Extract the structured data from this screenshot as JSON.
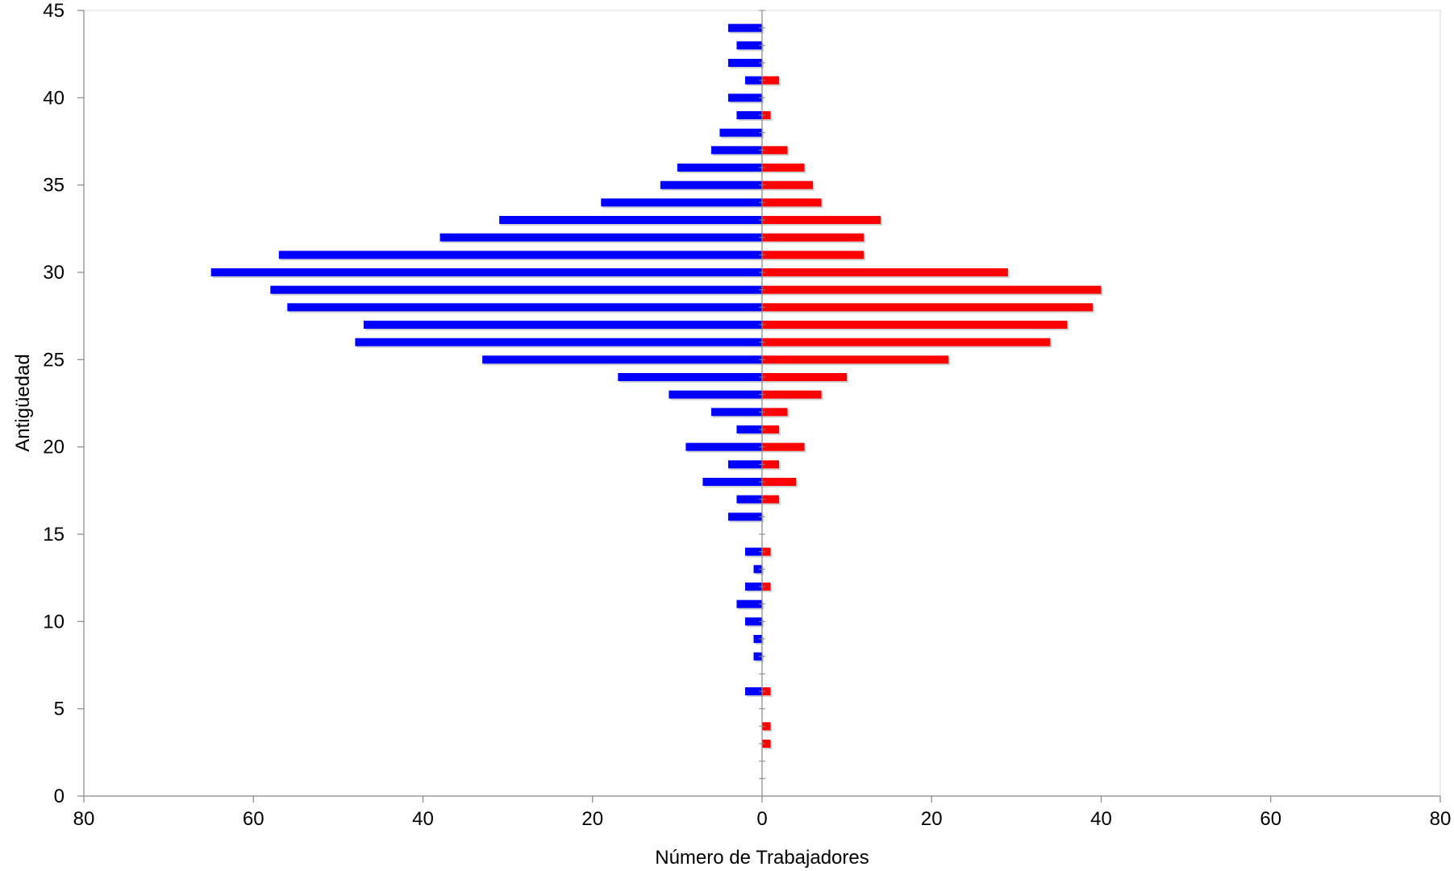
{
  "chart_data": {
    "type": "bar",
    "orientation": "horizontal",
    "layout": "population-pyramid",
    "title": "",
    "xlabel": "Número de Trabajadores",
    "ylabel": "Antigüedad",
    "xlim": [
      -80,
      80
    ],
    "ylim": [
      0,
      45
    ],
    "x_tick_values": [
      -80,
      -60,
      -40,
      -20,
      0,
      20,
      40,
      60,
      80
    ],
    "x_tick_labels": [
      "80",
      "60",
      "40",
      "20",
      "0",
      "20",
      "40",
      "60",
      "80"
    ],
    "y_tick_values": [
      0,
      5,
      10,
      15,
      20,
      25,
      30,
      35,
      40,
      45
    ],
    "y_tick_labels": [
      "0",
      "5",
      "10",
      "15",
      "20",
      "25",
      "30",
      "35",
      "40",
      "45"
    ],
    "grid": false,
    "legend": "none",
    "categories": [
      3,
      4,
      5,
      6,
      7,
      8,
      9,
      10,
      11,
      12,
      13,
      14,
      15,
      16,
      17,
      18,
      19,
      20,
      21,
      22,
      23,
      24,
      25,
      26,
      27,
      28,
      29,
      30,
      31,
      32,
      33,
      34,
      35,
      36,
      37,
      38,
      39,
      40,
      41,
      42,
      43,
      44
    ],
    "series": [
      {
        "side": "left",
        "color": "#0000ff",
        "values": [
          0,
          0,
          0,
          2,
          0,
          1,
          1,
          2,
          3,
          2,
          1,
          2,
          0,
          4,
          3,
          7,
          4,
          9,
          3,
          6,
          11,
          17,
          33,
          48,
          47,
          56,
          58,
          65,
          57,
          38,
          31,
          19,
          12,
          10,
          6,
          5,
          3,
          4,
          2,
          4,
          3,
          4
        ]
      },
      {
        "side": "right",
        "color": "#ff0000",
        "values": [
          1,
          1,
          0,
          1,
          0,
          0,
          0,
          0,
          0,
          1,
          0,
          1,
          0,
          0,
          2,
          4,
          2,
          5,
          2,
          3,
          7,
          10,
          22,
          34,
          36,
          39,
          40,
          29,
          12,
          12,
          14,
          7,
          6,
          5,
          3,
          0,
          1,
          0,
          2,
          0,
          0,
          0
        ]
      }
    ]
  }
}
